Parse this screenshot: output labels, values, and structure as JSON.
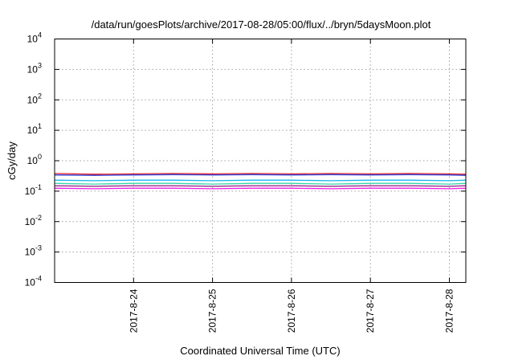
{
  "chart_data": {
    "type": "line",
    "title": "/data/run/goesPlots/archive/2017-08-28/05:00/flux/../bryn/5daysMoon.plot",
    "xlabel": "Coordinated Universal Time (UTC)",
    "ylabel": "cGy/day",
    "yscale": "log",
    "ylim": [
      0.0001,
      10000
    ],
    "y_ticks": [
      {
        "base": "10",
        "exp": "-4",
        "value": 0.0001
      },
      {
        "base": "10",
        "exp": "-3",
        "value": 0.001
      },
      {
        "base": "10",
        "exp": "-2",
        "value": 0.01
      },
      {
        "base": "10",
        "exp": "-1",
        "value": 0.1
      },
      {
        "base": "10",
        "exp": "0",
        "value": 1
      },
      {
        "base": "10",
        "exp": "1",
        "value": 10
      },
      {
        "base": "10",
        "exp": "2",
        "value": 100
      },
      {
        "base": "10",
        "exp": "3",
        "value": 1000
      },
      {
        "base": "10",
        "exp": "4",
        "value": 10000
      }
    ],
    "xlim": [
      "2017-08-23T00:00",
      "2017-08-28T05:00"
    ],
    "x_ticks": [
      {
        "label": "2017-8-24",
        "value": "2017-08-24T00:00"
      },
      {
        "label": "2017-8-25",
        "value": "2017-08-25T00:00"
      },
      {
        "label": "2017-8-26",
        "value": "2017-08-26T00:00"
      },
      {
        "label": "2017-8-27",
        "value": "2017-08-27T00:00"
      },
      {
        "label": "2017-8-28",
        "value": "2017-08-28T00:00"
      }
    ],
    "grid": true,
    "legend": "none",
    "series": [
      {
        "color": "#e8262a",
        "values": [
          {
            "x": "2017-08-23T00:00",
            "y": 0.38
          },
          {
            "x": "2017-08-23T12:00",
            "y": 0.36
          },
          {
            "x": "2017-08-24T00:00",
            "y": 0.37
          },
          {
            "x": "2017-08-24T12:00",
            "y": 0.38
          },
          {
            "x": "2017-08-25T00:00",
            "y": 0.37
          },
          {
            "x": "2017-08-25T12:00",
            "y": 0.38
          },
          {
            "x": "2017-08-26T00:00",
            "y": 0.37
          },
          {
            "x": "2017-08-26T12:00",
            "y": 0.38
          },
          {
            "x": "2017-08-27T00:00",
            "y": 0.37
          },
          {
            "x": "2017-08-27T12:00",
            "y": 0.38
          },
          {
            "x": "2017-08-28T00:00",
            "y": 0.37
          },
          {
            "x": "2017-08-28T05:00",
            "y": 0.36
          }
        ]
      },
      {
        "color": "#2a3bd6",
        "values": [
          {
            "x": "2017-08-23T00:00",
            "y": 0.34
          },
          {
            "x": "2017-08-23T12:00",
            "y": 0.33
          },
          {
            "x": "2017-08-24T00:00",
            "y": 0.34
          },
          {
            "x": "2017-08-24T12:00",
            "y": 0.35
          },
          {
            "x": "2017-08-25T00:00",
            "y": 0.34
          },
          {
            "x": "2017-08-25T12:00",
            "y": 0.35
          },
          {
            "x": "2017-08-26T00:00",
            "y": 0.34
          },
          {
            "x": "2017-08-26T12:00",
            "y": 0.35
          },
          {
            "x": "2017-08-27T00:00",
            "y": 0.34
          },
          {
            "x": "2017-08-27T12:00",
            "y": 0.35
          },
          {
            "x": "2017-08-28T00:00",
            "y": 0.34
          },
          {
            "x": "2017-08-28T05:00",
            "y": 0.33
          }
        ]
      },
      {
        "color": "#19b6f0",
        "values": [
          {
            "x": "2017-08-23T00:00",
            "y": 0.23
          },
          {
            "x": "2017-08-23T12:00",
            "y": 0.22
          },
          {
            "x": "2017-08-24T00:00",
            "y": 0.23
          },
          {
            "x": "2017-08-24T12:00",
            "y": 0.23
          },
          {
            "x": "2017-08-25T00:00",
            "y": 0.22
          },
          {
            "x": "2017-08-25T12:00",
            "y": 0.23
          },
          {
            "x": "2017-08-26T00:00",
            "y": 0.23
          },
          {
            "x": "2017-08-26T12:00",
            "y": 0.22
          },
          {
            "x": "2017-08-27T00:00",
            "y": 0.23
          },
          {
            "x": "2017-08-27T12:00",
            "y": 0.23
          },
          {
            "x": "2017-08-28T00:00",
            "y": 0.22
          },
          {
            "x": "2017-08-28T05:00",
            "y": 0.23
          }
        ]
      },
      {
        "color": "#33d6a8",
        "values": [
          {
            "x": "2017-08-23T00:00",
            "y": 0.18
          },
          {
            "x": "2017-08-23T12:00",
            "y": 0.17
          },
          {
            "x": "2017-08-24T00:00",
            "y": 0.18
          },
          {
            "x": "2017-08-24T12:00",
            "y": 0.18
          },
          {
            "x": "2017-08-25T00:00",
            "y": 0.17
          },
          {
            "x": "2017-08-25T12:00",
            "y": 0.18
          },
          {
            "x": "2017-08-26T00:00",
            "y": 0.18
          },
          {
            "x": "2017-08-26T12:00",
            "y": 0.17
          },
          {
            "x": "2017-08-27T00:00",
            "y": 0.18
          },
          {
            "x": "2017-08-27T12:00",
            "y": 0.18
          },
          {
            "x": "2017-08-28T00:00",
            "y": 0.17
          },
          {
            "x": "2017-08-28T05:00",
            "y": 0.18
          }
        ]
      },
      {
        "color": "#9b2a8e",
        "values": [
          {
            "x": "2017-08-23T00:00",
            "y": 0.15
          },
          {
            "x": "2017-08-23T12:00",
            "y": 0.145
          },
          {
            "x": "2017-08-24T00:00",
            "y": 0.15
          },
          {
            "x": "2017-08-24T12:00",
            "y": 0.15
          },
          {
            "x": "2017-08-25T00:00",
            "y": 0.145
          },
          {
            "x": "2017-08-25T12:00",
            "y": 0.15
          },
          {
            "x": "2017-08-26T00:00",
            "y": 0.15
          },
          {
            "x": "2017-08-26T12:00",
            "y": 0.145
          },
          {
            "x": "2017-08-27T00:00",
            "y": 0.15
          },
          {
            "x": "2017-08-27T12:00",
            "y": 0.15
          },
          {
            "x": "2017-08-28T00:00",
            "y": 0.145
          },
          {
            "x": "2017-08-28T05:00",
            "y": 0.15
          }
        ]
      },
      {
        "color": "#f01ce6",
        "values": [
          {
            "x": "2017-08-23T00:00",
            "y": 0.125
          },
          {
            "x": "2017-08-23T12:00",
            "y": 0.12
          },
          {
            "x": "2017-08-24T00:00",
            "y": 0.125
          },
          {
            "x": "2017-08-24T12:00",
            "y": 0.125
          },
          {
            "x": "2017-08-25T00:00",
            "y": 0.12
          },
          {
            "x": "2017-08-25T12:00",
            "y": 0.125
          },
          {
            "x": "2017-08-26T00:00",
            "y": 0.125
          },
          {
            "x": "2017-08-26T12:00",
            "y": 0.12
          },
          {
            "x": "2017-08-27T00:00",
            "y": 0.125
          },
          {
            "x": "2017-08-27T12:00",
            "y": 0.125
          },
          {
            "x": "2017-08-28T00:00",
            "y": 0.12
          },
          {
            "x": "2017-08-28T05:00",
            "y": 0.125
          }
        ]
      }
    ]
  }
}
